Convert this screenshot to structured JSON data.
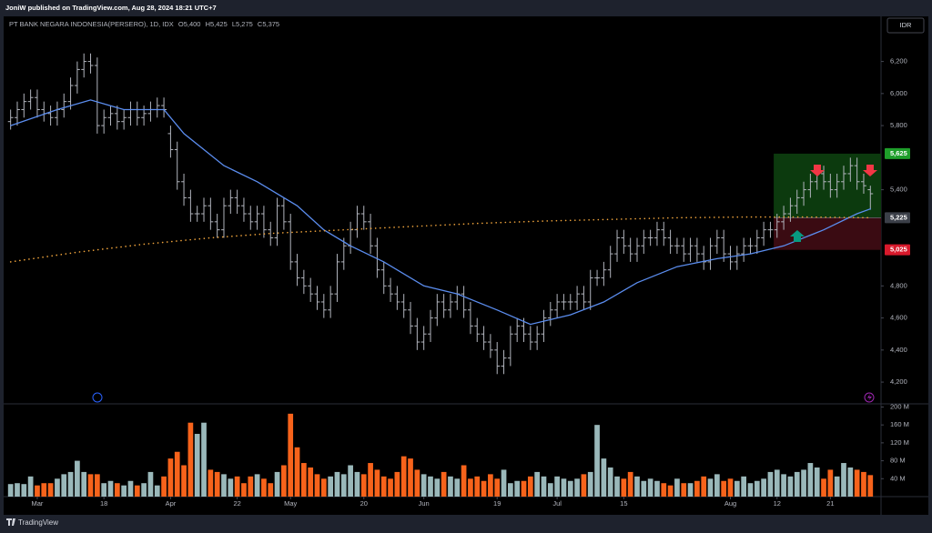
{
  "header": {
    "publisher": "JoniW published on TradingView.com, Aug 28, 2024 18:21 UTC+7",
    "symbol": "PT BANK NEGARA INDONESIA(PERSERO), 1D, IDX",
    "ohlc": [
      [
        "O",
        "5,400"
      ],
      [
        "H",
        "5,425"
      ],
      [
        "L",
        "5,275"
      ],
      [
        "C",
        "5,375"
      ]
    ]
  },
  "currency": "IDR",
  "footer": "TradingView",
  "chart_data": [
    {
      "type": "ohlc",
      "color": "#b2b5be",
      "xlim": [
        -0.5,
        130.6
      ],
      "ylim": [
        4070,
        6470
      ],
      "grid": false,
      "yticks": [
        {
          "value": 6200,
          "label": "6,200"
        },
        {
          "value": 6000,
          "label": "6,000"
        },
        {
          "value": 5800,
          "label": "5,800"
        },
        {
          "value": 5400,
          "label": "5,400"
        },
        {
          "value": 4800,
          "label": "4,800"
        },
        {
          "value": 4600,
          "label": "4,600"
        },
        {
          "value": 4400,
          "label": "4,400"
        },
        {
          "value": 4200,
          "label": "4,200"
        }
      ],
      "open": [
        5825,
        5850,
        5900,
        5950,
        5975,
        5900,
        5875,
        5850,
        5900,
        5950,
        6050,
        6150,
        6200,
        6175,
        5800,
        5850,
        5875,
        5825,
        5850,
        5900,
        5850,
        5875,
        5900,
        5925,
        5750,
        5650,
        5450,
        5350,
        5250,
        5250,
        5300,
        5200,
        5150,
        5300,
        5350,
        5300,
        5250,
        5200,
        5250,
        5150,
        5100,
        5300,
        5200,
        4950,
        4850,
        4800,
        4750,
        4700,
        4650,
        4750,
        4950,
        5050,
        5150,
        5250,
        5200,
        5050,
        4900,
        4800,
        4750,
        4700,
        4650,
        4550,
        4450,
        4500,
        4600,
        4700,
        4650,
        4700,
        4750,
        4650,
        4550,
        4500,
        4450,
        4400,
        4300,
        4350,
        4500,
        4550,
        4500,
        4450,
        4500,
        4600,
        4650,
        4700,
        4700,
        4700,
        4750,
        4700,
        4850,
        4850,
        4900,
        5000,
        5100,
        5050,
        5000,
        5050,
        5100,
        5100,
        5150,
        5100,
        5050,
        5050,
        5000,
        5050,
        5000,
        4950,
        5050,
        5100,
        5000,
        4950,
        5000,
        5050,
        5050,
        5100,
        5150,
        5150,
        5200,
        5250,
        5300,
        5350,
        5400,
        5450,
        5500,
        5450,
        5400,
        5450,
        5500,
        5550,
        5450,
        5400
      ],
      "high": [
        5900,
        5950,
        6000,
        6025,
        6025,
        5950,
        5925,
        5950,
        6000,
        6100,
        6200,
        6250,
        6250,
        6225,
        5900,
        5925,
        5925,
        5900,
        5950,
        5950,
        5925,
        5950,
        5975,
        5975,
        5800,
        5700,
        5500,
        5400,
        5300,
        5350,
        5350,
        5250,
        5350,
        5400,
        5400,
        5350,
        5300,
        5300,
        5300,
        5200,
        5350,
        5350,
        5250,
        5000,
        4900,
        4850,
        4800,
        4750,
        4800,
        5000,
        5100,
        5200,
        5300,
        5300,
        5250,
        5100,
        4950,
        4850,
        4800,
        4750,
        4700,
        4600,
        4550,
        4650,
        4750,
        4750,
        4750,
        4800,
        4800,
        4700,
        4600,
        4550,
        4500,
        4450,
        4400,
        4550,
        4600,
        4600,
        4550,
        4550,
        4650,
        4700,
        4750,
        4750,
        4750,
        4800,
        4800,
        4900,
        4900,
        4950,
        5050,
        5150,
        5150,
        5100,
        5100,
        5150,
        5150,
        5200,
        5200,
        5150,
        5100,
        5100,
        5100,
        5100,
        5050,
        5100,
        5150,
        5150,
        5050,
        5050,
        5100,
        5100,
        5150,
        5200,
        5200,
        5250,
        5300,
        5350,
        5400,
        5450,
        5500,
        5550,
        5550,
        5500,
        5500,
        5550,
        5600,
        5600,
        5500,
        5425
      ],
      "low": [
        5775,
        5800,
        5850,
        5900,
        5850,
        5825,
        5800,
        5800,
        5850,
        5900,
        6000,
        6100,
        6125,
        5750,
        5750,
        5800,
        5775,
        5775,
        5800,
        5800,
        5800,
        5825,
        5850,
        5850,
        5600,
        5400,
        5300,
        5200,
        5200,
        5200,
        5150,
        5100,
        5100,
        5250,
        5250,
        5200,
        5150,
        5150,
        5100,
        5050,
        5050,
        5150,
        4900,
        4800,
        4750,
        4700,
        4650,
        4600,
        4600,
        4700,
        4900,
        5000,
        5100,
        5150,
        5000,
        4850,
        4750,
        4700,
        4650,
        4600,
        4500,
        4400,
        4400,
        4450,
        4550,
        4600,
        4600,
        4650,
        4600,
        4500,
        4450,
        4400,
        4350,
        4250,
        4250,
        4300,
        4450,
        4450,
        4400,
        4400,
        4450,
        4550,
        4600,
        4650,
        4650,
        4650,
        4650,
        4650,
        4800,
        4800,
        4850,
        4950,
        5000,
        4950,
        4950,
        5000,
        5050,
        5050,
        5050,
        5000,
        5000,
        4950,
        4950,
        4950,
        4900,
        4900,
        5000,
        4950,
        4900,
        4900,
        4950,
        5000,
        5000,
        5050,
        5100,
        5100,
        5150,
        5200,
        5250,
        5300,
        5350,
        5400,
        5400,
        5350,
        5350,
        5400,
        5450,
        5400,
        5375,
        5275
      ],
      "close": [
        5850,
        5900,
        5950,
        5975,
        5900,
        5875,
        5850,
        5900,
        5950,
        6050,
        6150,
        6200,
        6175,
        5800,
        5850,
        5875,
        5825,
        5850,
        5900,
        5850,
        5875,
        5900,
        5925,
        5900,
        5650,
        5450,
        5350,
        5250,
        5250,
        5300,
        5200,
        5150,
        5300,
        5350,
        5300,
        5250,
        5200,
        5250,
        5150,
        5100,
        5300,
        5200,
        4950,
        4850,
        4800,
        4750,
        4700,
        4650,
        4750,
        4950,
        5050,
        5150,
        5250,
        5200,
        5050,
        4900,
        4800,
        4750,
        4700,
        4650,
        4550,
        4450,
        4500,
        4600,
        4700,
        4650,
        4700,
        4750,
        4650,
        4550,
        4500,
        4450,
        4400,
        4300,
        4350,
        4500,
        4550,
        4500,
        4450,
        4500,
        4600,
        4650,
        4700,
        4700,
        4700,
        4750,
        4700,
        4850,
        4850,
        4900,
        5000,
        5100,
        5050,
        5000,
        5050,
        5100,
        5100,
        5150,
        5100,
        5050,
        5050,
        5000,
        5050,
        5000,
        4950,
        5050,
        5100,
        5000,
        4950,
        5000,
        5050,
        5050,
        5100,
        5150,
        5150,
        5200,
        5250,
        5300,
        5350,
        5400,
        5450,
        5500,
        5450,
        5400,
        5450,
        5500,
        5550,
        5450,
        5425,
        5375
      ],
      "lines": [
        {
          "color": "#5b8def",
          "style": "solid",
          "x": [
            0,
            7,
            12,
            17,
            23,
            26,
            32,
            37,
            43,
            47,
            51,
            56,
            62,
            67,
            73,
            78,
            84,
            89,
            94,
            100,
            106,
            111,
            116,
            122,
            127,
            129
          ],
          "values": [
            5800,
            5900,
            5960,
            5900,
            5900,
            5750,
            5550,
            5450,
            5300,
            5150,
            5050,
            4950,
            4800,
            4750,
            4650,
            4560,
            4620,
            4700,
            4820,
            4920,
            4970,
            5000,
            5050,
            5150,
            5250,
            5280
          ]
        },
        {
          "color": "#f0a43c",
          "style": "dotted",
          "x": [
            0,
            10,
            20,
            30,
            40,
            50,
            60,
            70,
            80,
            90,
            100,
            110,
            120,
            129
          ],
          "values": [
            4950,
            5010,
            5060,
            5100,
            5130,
            5150,
            5170,
            5190,
            5205,
            5215,
            5225,
            5230,
            5230,
            5225
          ]
        }
      ],
      "position": {
        "x_start": 115,
        "target_color": "#0c3a0e",
        "stop_color": "#3a0b12",
        "levels": [
          {
            "value": 5625,
            "label": "5,625",
            "color": "#1e9e2a"
          },
          {
            "value": 5225,
            "label": "5,225",
            "color": "#3b3f48"
          },
          {
            "value": 5025,
            "label": "5,025",
            "color": "#d7192b"
          }
        ]
      }
    },
    {
      "type": "bar",
      "up_color": "#9ab8ba",
      "down_color": "#f7631b",
      "xlim": [
        -0.5,
        130.6
      ],
      "ylim": [
        0,
        205
      ],
      "yticks": [
        {
          "value": 200,
          "label": "200 M"
        },
        {
          "value": 160,
          "label": "160 M"
        },
        {
          "value": 120,
          "label": "120 M"
        },
        {
          "value": 80,
          "label": "80 M"
        },
        {
          "value": 40,
          "label": "40 M"
        }
      ],
      "xticks": [
        {
          "value": 4,
          "label": "Mar"
        },
        {
          "value": 14,
          "label": "18"
        },
        {
          "value": 24,
          "label": "Apr"
        },
        {
          "value": 34,
          "label": "22"
        },
        {
          "value": 42,
          "label": "May"
        },
        {
          "value": 53,
          "label": "20"
        },
        {
          "value": 62,
          "label": "Jun"
        },
        {
          "value": 73,
          "label": "19"
        },
        {
          "value": 82,
          "label": "Jul"
        },
        {
          "value": 92,
          "label": "15"
        },
        {
          "value": 108,
          "label": "Aug"
        },
        {
          "value": 115,
          "label": "12"
        },
        {
          "value": 123,
          "label": "21"
        }
      ],
      "values": [
        28,
        30,
        28,
        45,
        25,
        30,
        30,
        40,
        50,
        55,
        80,
        55,
        50,
        50,
        30,
        35,
        30,
        25,
        35,
        25,
        30,
        55,
        25,
        45,
        85,
        100,
        70,
        165,
        140,
        165,
        60,
        55,
        50,
        40,
        45,
        30,
        45,
        50,
        40,
        30,
        55,
        70,
        185,
        110,
        75,
        65,
        50,
        40,
        45,
        55,
        50,
        70,
        55,
        50,
        75,
        60,
        45,
        40,
        55,
        90,
        85,
        60,
        50,
        45,
        40,
        55,
        45,
        40,
        70,
        40,
        45,
        35,
        50,
        40,
        60,
        30,
        35,
        35,
        45,
        55,
        45,
        30,
        45,
        40,
        35,
        40,
        50,
        55,
        160,
        85,
        65,
        45,
        40,
        55,
        45,
        35,
        40,
        35,
        30,
        25,
        40,
        30,
        30,
        35,
        45,
        40,
        50,
        35,
        40,
        35,
        45,
        30,
        35,
        40,
        55,
        60,
        50,
        45,
        55,
        60,
        75,
        65,
        40,
        60,
        45,
        75,
        65,
        60,
        55,
        48
      ]
    }
  ]
}
